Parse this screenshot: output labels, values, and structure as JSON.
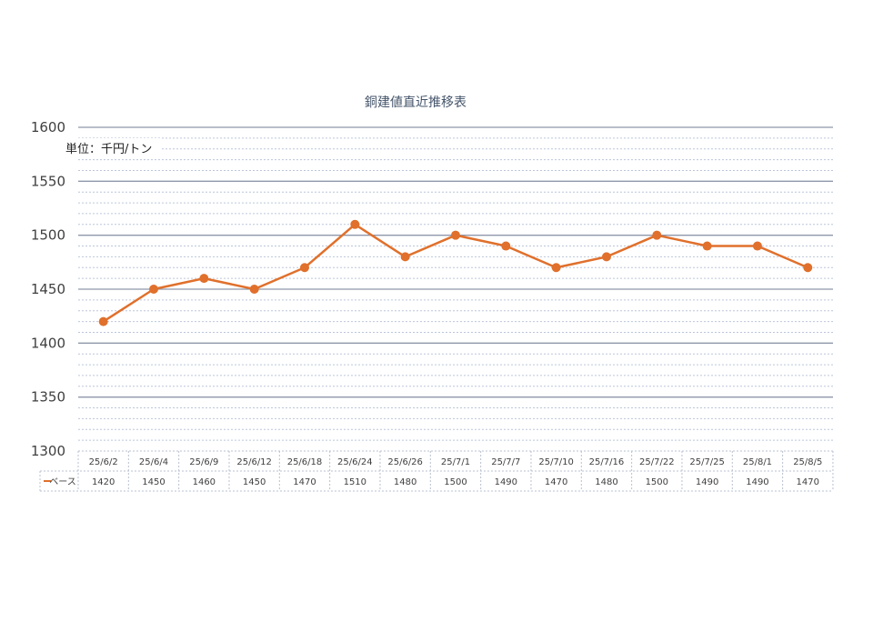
{
  "chart_data": {
    "type": "line",
    "title": "銅建値直近推移表",
    "unit_label": "単位：千円/トン",
    "ylim": [
      1300,
      1600
    ],
    "yticks": [
      1300,
      1350,
      1400,
      1450,
      1500,
      1550,
      1600
    ],
    "minor_grid": true,
    "categories": [
      "25/6/2",
      "25/6/4",
      "25/6/9",
      "25/6/12",
      "25/6/18",
      "25/6/24",
      "25/6/26",
      "25/7/1",
      "25/7/7",
      "25/7/10",
      "25/7/16",
      "25/7/22",
      "25/7/25",
      "25/8/1",
      "25/8/5"
    ],
    "series": [
      {
        "name": "ベース",
        "values": [
          1420,
          1450,
          1460,
          1450,
          1470,
          1510,
          1480,
          1500,
          1490,
          1470,
          1480,
          1500,
          1490,
          1490,
          1470
        ],
        "color": "#e0702c"
      }
    ],
    "colors": {
      "major_grid": "#8e97aa",
      "minor_grid": "#bcc6da",
      "table_border": "#b8c0d0",
      "title": "#44546a"
    }
  }
}
